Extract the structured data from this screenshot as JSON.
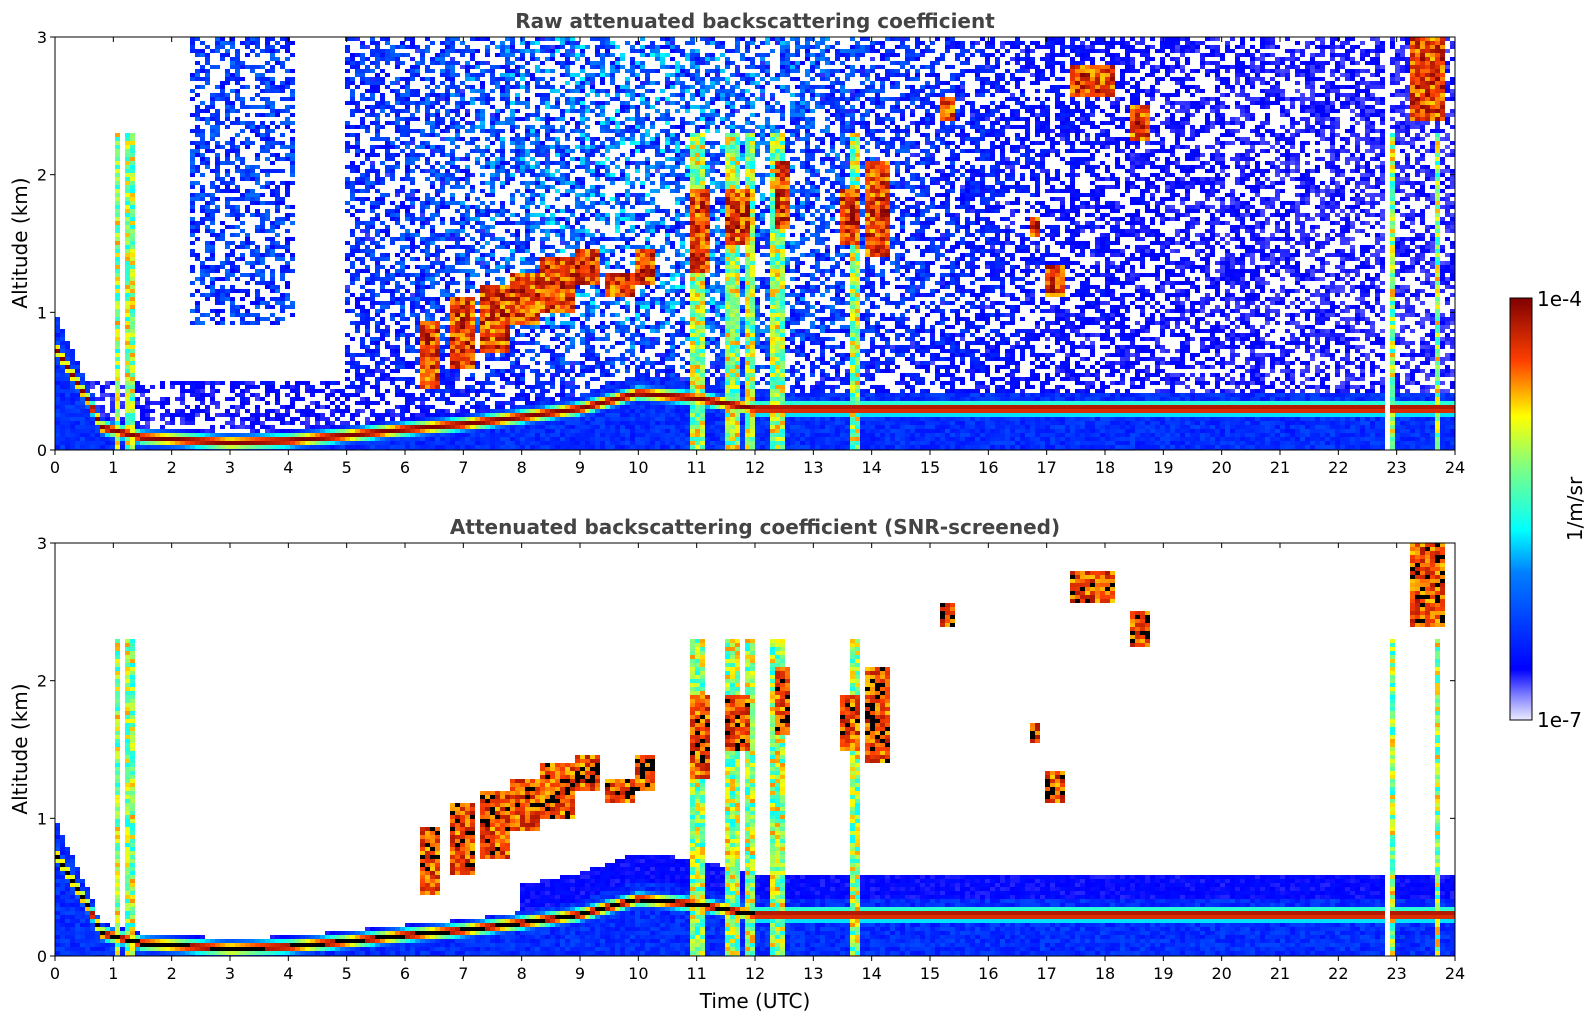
{
  "chart_data": [
    {
      "type": "heatmap",
      "title": "Raw attenuated backscattering coefficient",
      "xlabel": "",
      "ylabel": "Altitude (km)",
      "xlim": [
        0,
        24
      ],
      "ylim": [
        0,
        3
      ],
      "x_ticks": [
        "0",
        "1",
        "2",
        "3",
        "4",
        "5",
        "6",
        "7",
        "8",
        "9",
        "10",
        "11",
        "12",
        "13",
        "14",
        "15",
        "16",
        "17",
        "18",
        "19",
        "20",
        "21",
        "22",
        "23",
        "24"
      ],
      "y_ticks": [
        "0",
        "1",
        "2",
        "3"
      ],
      "screened": false
    },
    {
      "type": "heatmap",
      "title": "Attenuated backscattering coefficient (SNR-screened)",
      "xlabel": "Time (UTC)",
      "ylabel": "Altitude (km)",
      "xlim": [
        0,
        24
      ],
      "ylim": [
        0,
        3
      ],
      "x_ticks": [
        "0",
        "1",
        "2",
        "3",
        "4",
        "5",
        "6",
        "7",
        "8",
        "9",
        "10",
        "11",
        "12",
        "13",
        "14",
        "15",
        "16",
        "17",
        "18",
        "19",
        "20",
        "21",
        "22",
        "23",
        "24"
      ],
      "y_ticks": [
        "0",
        "1",
        "2",
        "3"
      ],
      "screened": true
    }
  ],
  "colorbar": {
    "label": "1/m/sr",
    "max_label": "1e-4",
    "min_label": "1e-7",
    "colormap": "jet",
    "colors": [
      "#e8e8ff",
      "#0000ff",
      "#00ffff",
      "#ffff00",
      "#ff0000",
      "#800000"
    ]
  }
}
